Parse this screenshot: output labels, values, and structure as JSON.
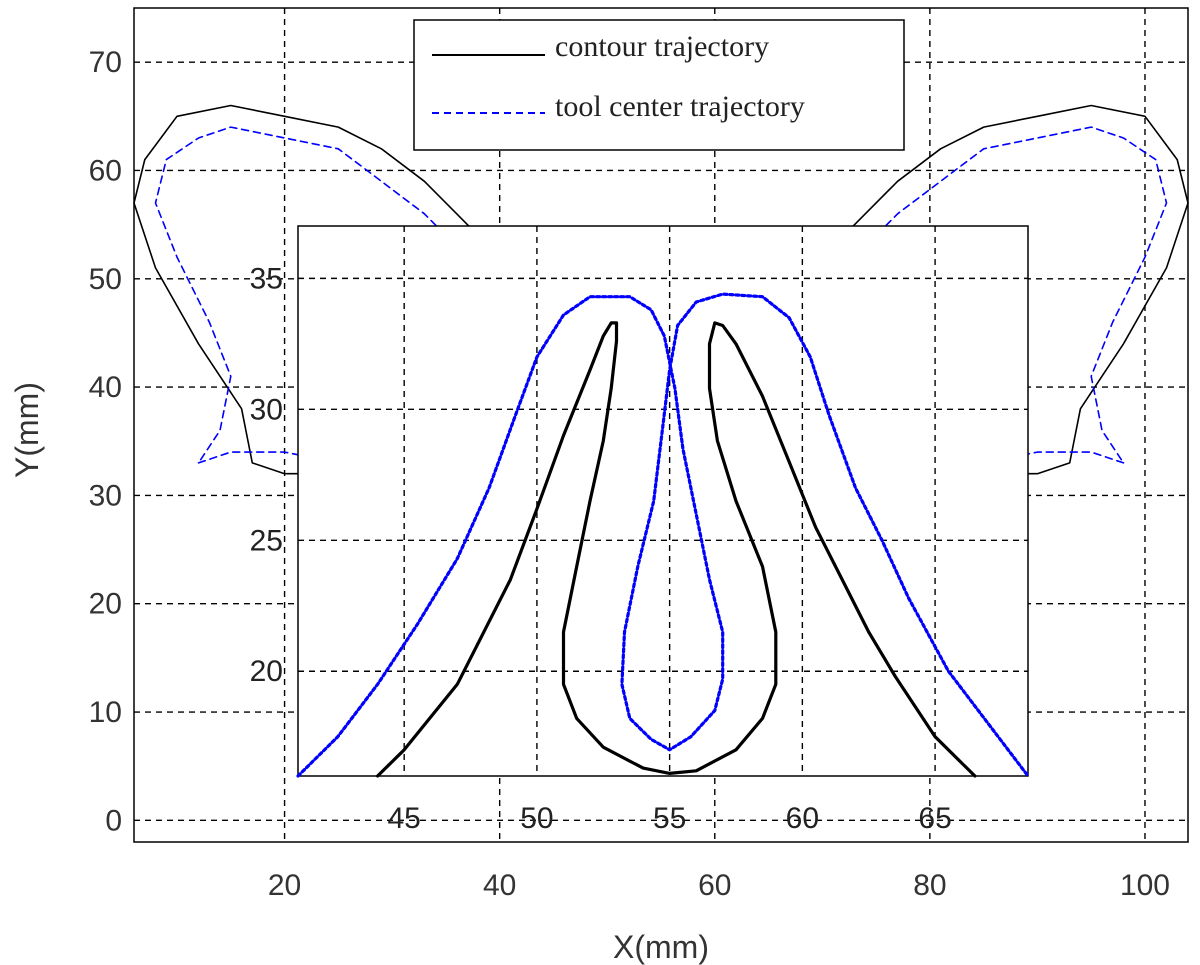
{
  "chart_data": [
    {
      "type": "line",
      "xlabel": "X(mm)",
      "ylabel": "Y(mm)",
      "xlim": [
        6,
        104
      ],
      "ylim": [
        -2,
        75
      ],
      "xticks": [
        20,
        40,
        60,
        80,
        100
      ],
      "yticks": [
        0,
        10,
        20,
        30,
        40,
        50,
        60,
        70
      ],
      "grid": true,
      "legend": {
        "placement": "top-center"
      },
      "series": [
        {
          "name": "contour trajectory",
          "color": "#000000",
          "style": "solid",
          "points": [
            [
              26,
              26
            ],
            [
              25,
              27
            ],
            [
              27,
              30
            ],
            [
              30,
              29
            ],
            [
              33,
              30
            ],
            [
              35,
              31
            ],
            [
              37,
              34
            ],
            [
              39,
              41
            ],
            [
              40,
              48
            ],
            [
              40,
              52
            ],
            [
              38,
              54
            ],
            [
              36,
              56
            ],
            [
              33,
              59
            ],
            [
              29,
              62
            ],
            [
              25,
              64
            ],
            [
              20,
              65
            ],
            [
              15,
              66
            ],
            [
              10,
              65
            ],
            [
              7,
              61
            ],
            [
              6,
              57
            ],
            [
              8,
              51
            ],
            [
              12,
              44
            ],
            [
              16,
              38
            ],
            [
              17,
              33
            ],
            [
              20,
              32
            ],
            [
              25,
              32
            ],
            [
              28,
              28
            ],
            [
              30,
              26
            ],
            [
              33,
              24
            ],
            [
              33,
              20
            ],
            [
              31,
              20
            ],
            [
              28,
              21
            ],
            [
              25,
              24
            ],
            [
              26,
              26
            ]
          ],
          "mirror_about_x": 55
        },
        {
          "name": "tool center trajectory",
          "color": "#0000ff",
          "style": "dashed",
          "points": [
            [
              12,
              33
            ],
            [
              15,
              34
            ],
            [
              20,
              34
            ],
            [
              25,
              33
            ],
            [
              30,
              32
            ],
            [
              34,
              33
            ],
            [
              37,
              38
            ],
            [
              38,
              44
            ],
            [
              38,
              50
            ],
            [
              36,
              53
            ],
            [
              33,
              56
            ],
            [
              29,
              59
            ],
            [
              25,
              62
            ],
            [
              20,
              63
            ],
            [
              15,
              64
            ],
            [
              12,
              63
            ],
            [
              9,
              61
            ],
            [
              8,
              57
            ],
            [
              10,
              52
            ],
            [
              13,
              46
            ],
            [
              15,
              41
            ],
            [
              14,
              36
            ],
            [
              12,
              33
            ]
          ],
          "mirror_about_x": 55
        }
      ]
    },
    {
      "type": "line",
      "inset": true,
      "xlim": [
        41,
        68.5
      ],
      "ylim": [
        16,
        37
      ],
      "xticks": [
        45,
        50,
        55,
        60,
        65
      ],
      "yticks": [
        20,
        25,
        30,
        35
      ],
      "grid": true,
      "series": [
        {
          "name": "contour trajectory",
          "color": "#000000",
          "style": "solid",
          "points": [
            [
              44,
              16
            ],
            [
              45,
              17
            ],
            [
              47,
              19.5
            ],
            [
              49,
              23.5
            ],
            [
              50,
              26.2
            ],
            [
              51,
              29
            ],
            [
              52,
              31.5
            ],
            [
              52.5,
              32.8
            ],
            [
              52.8,
              33.3
            ],
            [
              53,
              33.3
            ],
            [
              53,
              32.6
            ],
            [
              52.8,
              30.8
            ],
            [
              52.5,
              28.8
            ],
            [
              52,
              26.5
            ],
            [
              51.5,
              24
            ],
            [
              51,
              21.5
            ],
            [
              51,
              19.5
            ],
            [
              51.5,
              18.2
            ],
            [
              52.5,
              17.1
            ],
            [
              54,
              16.3
            ],
            [
              55,
              16.1
            ],
            [
              56,
              16.2
            ],
            [
              57.5,
              17
            ],
            [
              58.5,
              18.2
            ],
            [
              59,
              19.5
            ],
            [
              59,
              21.5
            ],
            [
              58.5,
              24
            ],
            [
              57.5,
              26.5
            ],
            [
              56.8,
              28.8
            ],
            [
              56.5,
              30.8
            ],
            [
              56.5,
              32.5
            ],
            [
              56.7,
              33.3
            ],
            [
              57,
              33.2
            ],
            [
              57.5,
              32.5
            ],
            [
              58.5,
              30.5
            ],
            [
              59.5,
              28
            ],
            [
              60.5,
              25.5
            ],
            [
              61.5,
              23.5
            ],
            [
              62.5,
              21.5
            ],
            [
              63.5,
              19.8
            ],
            [
              65,
              17.5
            ],
            [
              66,
              16.5
            ],
            [
              66.5,
              16
            ]
          ]
        },
        {
          "name": "tool center trajectory",
          "color": "#0000ff",
          "style": "dotted",
          "points": [
            [
              41,
              16
            ],
            [
              42.5,
              17.5
            ],
            [
              44,
              19.5
            ],
            [
              45.5,
              21.8
            ],
            [
              47,
              24.3
            ],
            [
              48.2,
              27
            ],
            [
              49.2,
              29.8
            ],
            [
              50,
              32
            ],
            [
              51,
              33.6
            ],
            [
              52,
              34.3
            ],
            [
              53.5,
              34.3
            ],
            [
              54.3,
              33.8
            ],
            [
              54.8,
              32.8
            ],
            [
              55.2,
              30.8
            ],
            [
              55.5,
              28.5
            ],
            [
              56,
              26
            ],
            [
              56.5,
              23.5
            ],
            [
              57,
              21.5
            ],
            [
              57,
              19.7
            ],
            [
              56.7,
              18.5
            ],
            [
              55.8,
              17.5
            ],
            [
              55,
              17
            ],
            [
              54.3,
              17.4
            ],
            [
              53.5,
              18.2
            ],
            [
              53.2,
              19.5
            ],
            [
              53.3,
              21.5
            ],
            [
              53.8,
              24
            ],
            [
              54.4,
              26.5
            ],
            [
              54.7,
              29
            ],
            [
              55,
              31.5
            ],
            [
              55.3,
              33.2
            ],
            [
              56,
              34.1
            ],
            [
              57,
              34.4
            ],
            [
              58.5,
              34.3
            ],
            [
              59.5,
              33.5
            ],
            [
              60.3,
              32
            ],
            [
              61,
              29.8
            ],
            [
              62,
              27
            ],
            [
              63,
              25
            ],
            [
              64,
              22.8
            ],
            [
              65.5,
              20
            ],
            [
              67,
              18
            ],
            [
              68.5,
              16
            ]
          ]
        }
      ]
    }
  ]
}
